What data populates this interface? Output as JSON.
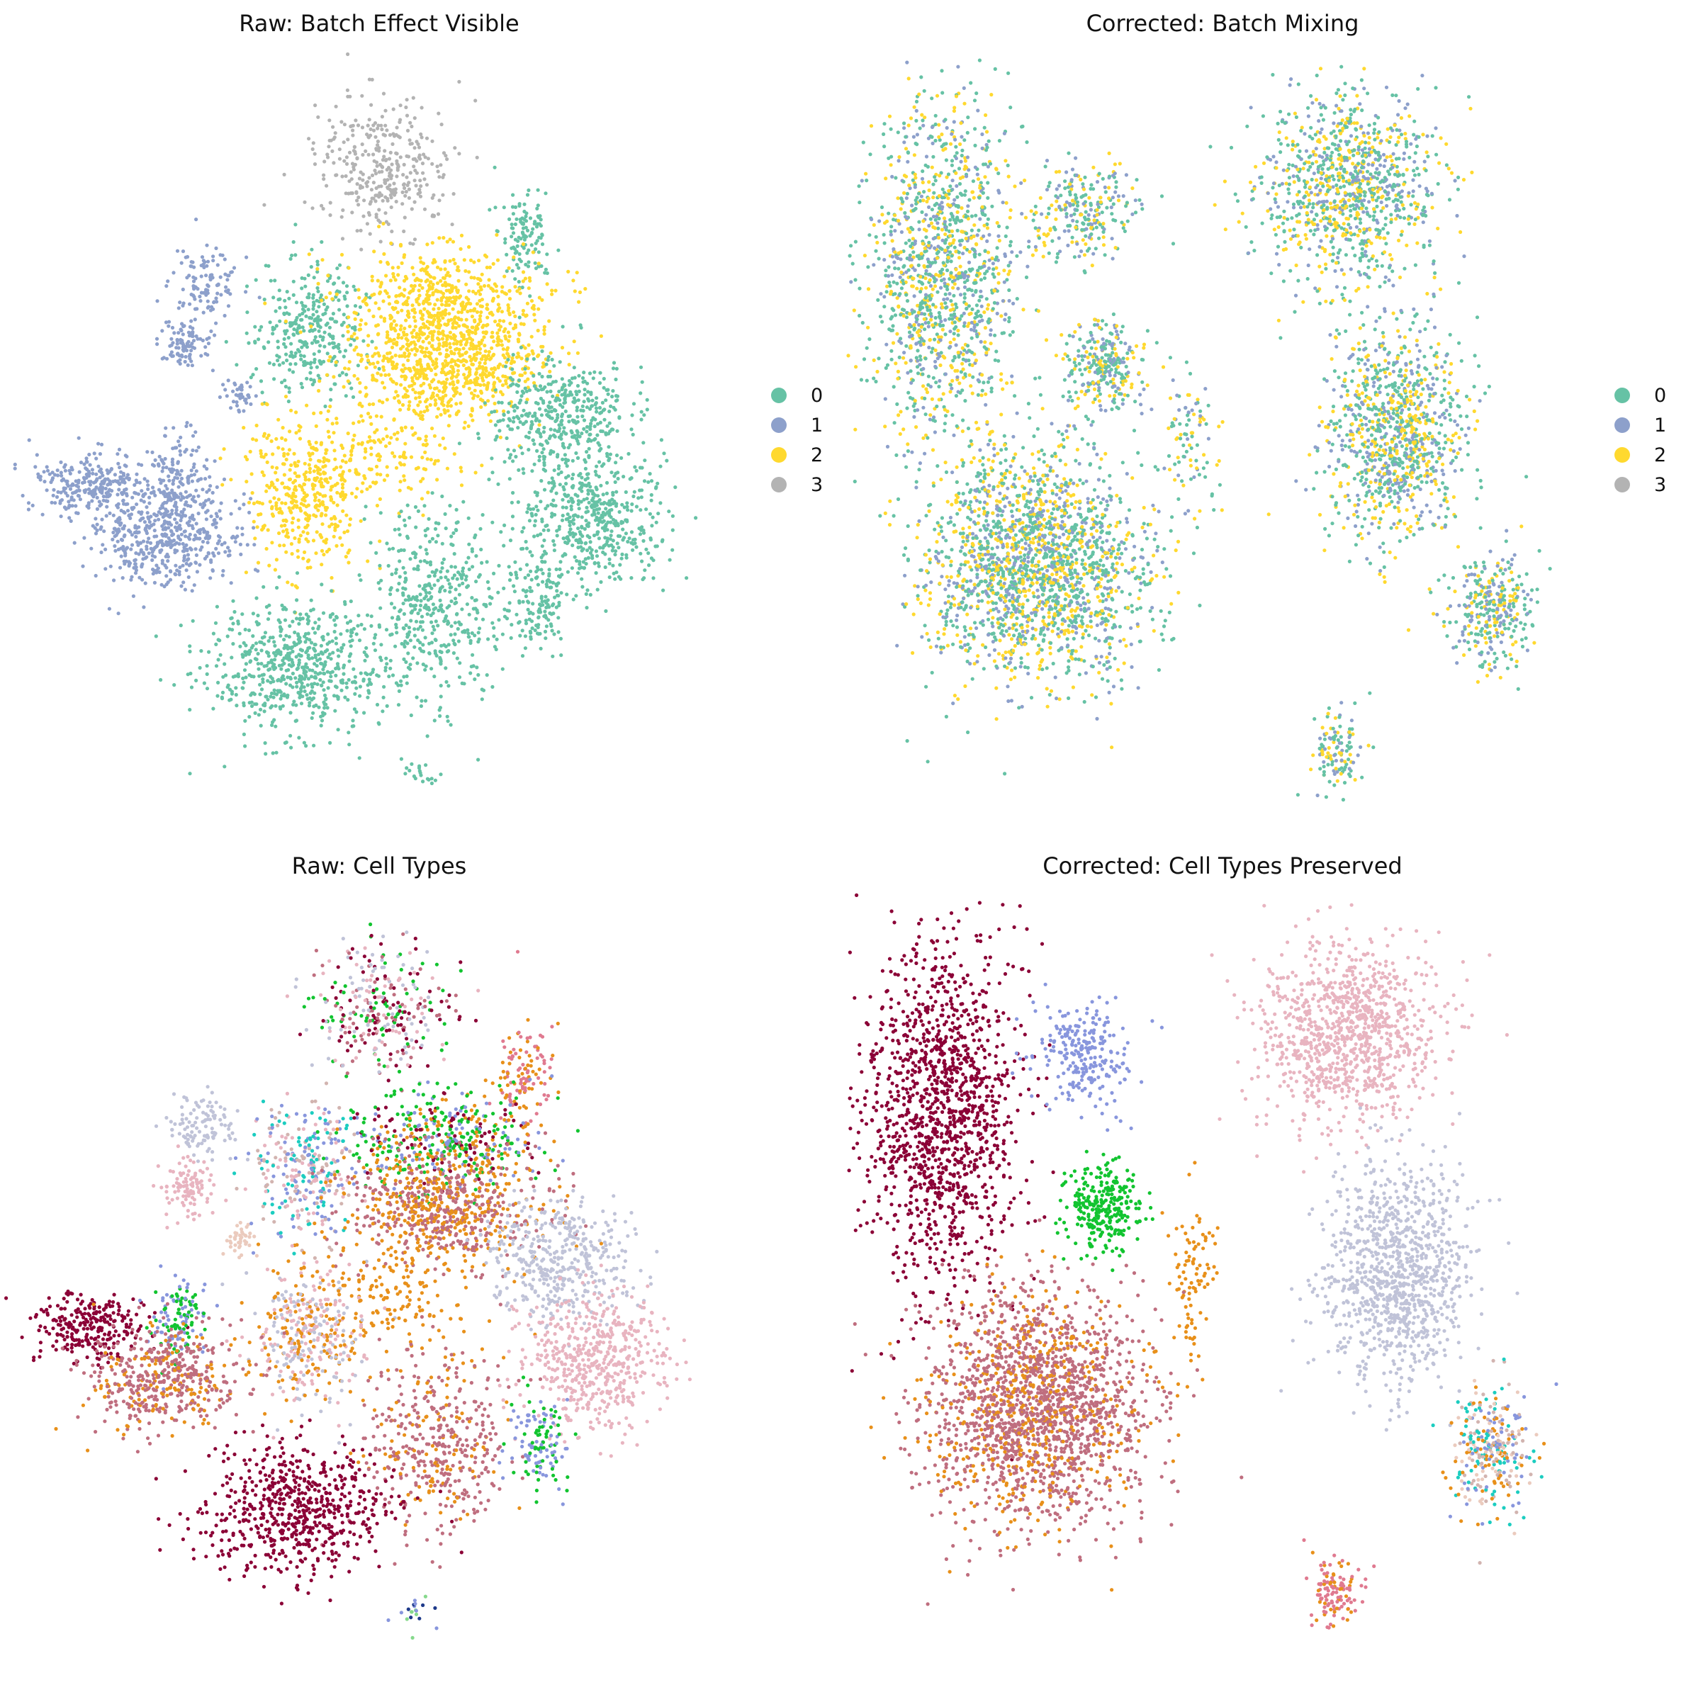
{
  "figure": {
    "panels": [
      {
        "id": "raw-batch",
        "title": "Raw: Batch Effect Visible",
        "color_by": "batch",
        "show_legend": true
      },
      {
        "id": "corrected-batch",
        "title": "Corrected: Batch Mixing",
        "color_by": "batch",
        "show_legend": true
      },
      {
        "id": "raw-celltype",
        "title": "Raw: Cell Types",
        "color_by": "celltype",
        "show_legend": false
      },
      {
        "id": "corrected-celltype",
        "title": "Corrected: Cell Types Preserved",
        "color_by": "celltype",
        "show_legend": false
      }
    ]
  },
  "chart_data": [
    {
      "type": "scatter",
      "title": "Raw: Batch Effect Visible",
      "xlabel": "",
      "ylabel": "",
      "axes_visible": false,
      "grid": false,
      "legend": {
        "placement": "right",
        "entries": [
          "0",
          "1",
          "2",
          "3"
        ]
      },
      "batch_colors": {
        "0": "#66c2a5",
        "1": "#8da0cb",
        "2": "#ffd92f",
        "3": "#b3b3b3"
      },
      "clusters": [
        {
          "batch": "3",
          "celltype": "brown-red",
          "x": 0.5,
          "y": 0.13,
          "sx": 0.05,
          "sy": 0.045,
          "n": 340
        },
        {
          "batch": "0",
          "celltype": "pink-red",
          "x": 0.71,
          "y": 0.22,
          "sx": 0.02,
          "sy": 0.035,
          "n": 120
        },
        {
          "batch": "1",
          "celltype": "grey-lavender",
          "x": 0.24,
          "y": 0.29,
          "sx": 0.025,
          "sy": 0.022,
          "n": 110
        },
        {
          "batch": "1",
          "celltype": "light-pink",
          "x": 0.21,
          "y": 0.37,
          "sx": 0.02,
          "sy": 0.018,
          "n": 100
        },
        {
          "batch": "1",
          "celltype": "peach",
          "x": 0.29,
          "y": 0.44,
          "sx": 0.01,
          "sy": 0.012,
          "n": 40
        },
        {
          "batch": "0",
          "celltype": "cyan-mauve",
          "x": 0.39,
          "y": 0.35,
          "sx": 0.04,
          "sy": 0.045,
          "n": 330
        },
        {
          "batch": "2",
          "celltype": "crimson-green",
          "x": 0.59,
          "y": 0.31,
          "sx": 0.07,
          "sy": 0.035,
          "n": 500
        },
        {
          "batch": "2",
          "celltype": "mauve-orange",
          "x": 0.59,
          "y": 0.4,
          "sx": 0.07,
          "sy": 0.04,
          "n": 750
        },
        {
          "batch": "0",
          "celltype": "lavender-grey",
          "x": 0.76,
          "y": 0.47,
          "sx": 0.05,
          "sy": 0.04,
          "n": 420
        },
        {
          "batch": "2",
          "celltype": "mauve-pink",
          "x": 0.39,
          "y": 0.57,
          "sx": 0.045,
          "sy": 0.05,
          "n": 420
        },
        {
          "batch": "2",
          "celltype": "orange-trail",
          "x": 0.51,
          "y": 0.52,
          "sx": 0.06,
          "sy": 0.03,
          "n": 130
        },
        {
          "batch": "1",
          "celltype": "crimson",
          "x": 0.07,
          "y": 0.56,
          "sx": 0.04,
          "sy": 0.022,
          "n": 260
        },
        {
          "batch": "1",
          "celltype": "blue-green",
          "x": 0.2,
          "y": 0.55,
          "sx": 0.022,
          "sy": 0.03,
          "n": 130
        },
        {
          "batch": "1",
          "celltype": "mauve",
          "x": 0.18,
          "y": 0.63,
          "sx": 0.055,
          "sy": 0.035,
          "n": 500
        },
        {
          "batch": "0",
          "celltype": "light-pink",
          "x": 0.81,
          "y": 0.61,
          "sx": 0.055,
          "sy": 0.045,
          "n": 520
        },
        {
          "batch": "0",
          "celltype": "mauve",
          "x": 0.58,
          "y": 0.72,
          "sx": 0.05,
          "sy": 0.065,
          "n": 450
        },
        {
          "batch": "0",
          "celltype": "blue-green",
          "x": 0.73,
          "y": 0.72,
          "sx": 0.022,
          "sy": 0.03,
          "n": 130
        },
        {
          "batch": "0",
          "celltype": "crimson",
          "x": 0.37,
          "y": 0.81,
          "sx": 0.065,
          "sy": 0.045,
          "n": 620
        },
        {
          "batch": "0",
          "celltype": "sparse-mixed",
          "x": 0.55,
          "y": 0.95,
          "sx": 0.015,
          "sy": 0.01,
          "n": 20
        }
      ]
    },
    {
      "type": "scatter",
      "title": "Corrected: Batch Mixing",
      "xlabel": "",
      "ylabel": "",
      "axes_visible": false,
      "grid": false,
      "legend": {
        "placement": "right",
        "entries": [
          "0",
          "1",
          "2",
          "3"
        ]
      },
      "batch_colors": {
        "0": "#66c2a5",
        "1": "#8da0cb",
        "2": "#ffd92f",
        "3": "#b3b3b3"
      },
      "batch_mix": [
        0.45,
        0.25,
        0.3
      ],
      "clusters": [
        {
          "celltype": "crimson",
          "x": 0.08,
          "y": 0.27,
          "sx": 0.055,
          "sy": 0.11,
          "n": 1300
        },
        {
          "celltype": "periwinkle",
          "x": 0.29,
          "y": 0.19,
          "sx": 0.035,
          "sy": 0.035,
          "n": 250
        },
        {
          "celltype": "light-pink",
          "x": 0.68,
          "y": 0.16,
          "sx": 0.065,
          "sy": 0.06,
          "n": 1000
        },
        {
          "celltype": "green",
          "x": 0.32,
          "y": 0.4,
          "sx": 0.028,
          "sy": 0.03,
          "n": 280
        },
        {
          "celltype": "orange-trail",
          "x": 0.45,
          "y": 0.5,
          "sx": 0.02,
          "sy": 0.055,
          "n": 90
        },
        {
          "celltype": "lavender-grey",
          "x": 0.75,
          "y": 0.49,
          "sx": 0.05,
          "sy": 0.075,
          "n": 1000
        },
        {
          "celltype": "mauve",
          "x": 0.22,
          "y": 0.67,
          "sx": 0.08,
          "sy": 0.075,
          "n": 2000
        },
        {
          "celltype": "mixed-small",
          "x": 0.89,
          "y": 0.73,
          "sx": 0.03,
          "sy": 0.04,
          "n": 320
        },
        {
          "celltype": "pink-red",
          "x": 0.66,
          "y": 0.92,
          "sx": 0.02,
          "sy": 0.025,
          "n": 120
        }
      ]
    },
    {
      "type": "scatter",
      "title": "Raw: Cell Types",
      "xlabel": "",
      "ylabel": "",
      "axes_visible": false,
      "grid": false,
      "legend": null,
      "celltype_colors": {
        "crimson": "#8b0036",
        "mauve": "#bf6e7f",
        "light-pink": "#e8b4c0",
        "lavender-grey": "#c0c3d8",
        "periwinkle": "#8896dd",
        "green": "#12c430",
        "orange": "#e8901a",
        "cyan": "#1ccdc0",
        "pink-red": "#e07a90",
        "peach": "#ebcbbe",
        "navy": "#1e3a8a",
        "light-green": "#86d98c",
        "tan": "#d2b4b0"
      }
    },
    {
      "type": "scatter",
      "title": "Corrected: Cell Types Preserved",
      "xlabel": "",
      "ylabel": "",
      "axes_visible": false,
      "grid": false,
      "legend": null
    }
  ]
}
